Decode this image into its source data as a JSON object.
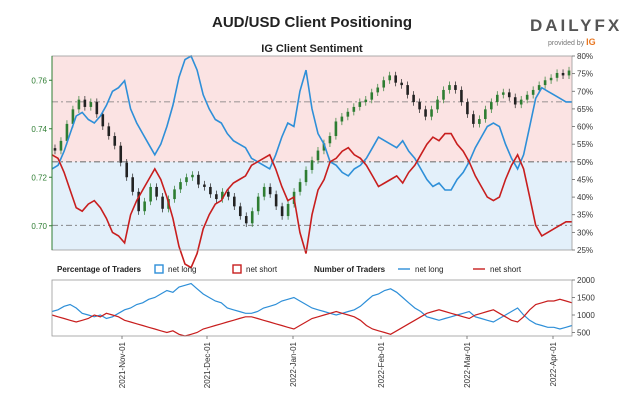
{
  "title": "AUD/USD Client Positioning",
  "logo": {
    "text": "DAILYFX",
    "provided_by": "provided by",
    "brand": "IG"
  },
  "chart_data": [
    {
      "type": "line",
      "title": "IG Client Sentiment",
      "left_axis": {
        "ticks": [
          "0.76",
          "0.74",
          "0.72",
          "0.70"
        ],
        "values": [
          0.76,
          0.74,
          0.72,
          0.7
        ],
        "range": [
          0.69,
          0.77
        ]
      },
      "right_axis": {
        "ticks": [
          "80%",
          "75%",
          "70%",
          "65%",
          "60%",
          "55%",
          "50%",
          "45%",
          "40%",
          "35%",
          "30%",
          "25%"
        ],
        "values": [
          80,
          75,
          70,
          65,
          60,
          55,
          50,
          45,
          40,
          35,
          30,
          25
        ],
        "range": [
          25,
          80
        ]
      },
      "reference_lines": [
        67,
        50,
        32
      ],
      "series": [
        {
          "name": "net long",
          "color": "#2e8fd8",
          "values": [
            48,
            49,
            53,
            58,
            63,
            64,
            62,
            61,
            63,
            66,
            70,
            71,
            73,
            65,
            61,
            58,
            55,
            52,
            55,
            60,
            66,
            74,
            79,
            80,
            76,
            69,
            65,
            62,
            61,
            58,
            56,
            55,
            54,
            51,
            50,
            49,
            48,
            52,
            57,
            61,
            60,
            70,
            76,
            65,
            58,
            55,
            50,
            49,
            47,
            46,
            48,
            49,
            51,
            54,
            57,
            56,
            55,
            54,
            56,
            53,
            51,
            48,
            45,
            43,
            44,
            42,
            42,
            45,
            47,
            50,
            54,
            57,
            60,
            61,
            60,
            55,
            51,
            48,
            52,
            60,
            68,
            71,
            70,
            69,
            68,
            67,
            67
          ]
        },
        {
          "name": "net short",
          "color": "#c81e1e",
          "values": [
            52,
            51,
            47,
            42,
            37,
            36,
            38,
            39,
            37,
            34,
            30,
            29,
            27,
            35,
            39,
            42,
            45,
            48,
            45,
            40,
            34,
            26,
            21,
            20,
            24,
            31,
            35,
            38,
            39,
            42,
            44,
            45,
            46,
            49,
            50,
            51,
            52,
            48,
            43,
            39,
            40,
            30,
            24,
            35,
            42,
            45,
            50,
            51,
            53,
            54,
            52,
            51,
            49,
            46,
            43,
            44,
            45,
            46,
            44,
            47,
            49,
            52,
            55,
            57,
            56,
            58,
            58,
            55,
            53,
            50,
            46,
            43,
            40,
            39,
            40,
            45,
            49,
            52,
            48,
            40,
            32,
            29,
            30,
            31,
            32,
            33,
            33
          ]
        }
      ],
      "price": {
        "start": 0.732,
        "values": [
          0.731,
          0.735,
          0.742,
          0.748,
          0.752,
          0.749,
          0.751,
          0.746,
          0.741,
          0.737,
          0.733,
          0.726,
          0.72,
          0.714,
          0.706,
          0.71,
          0.716,
          0.712,
          0.707,
          0.711,
          0.715,
          0.718,
          0.72,
          0.721,
          0.717,
          0.716,
          0.713,
          0.711,
          0.714,
          0.712,
          0.708,
          0.704,
          0.701,
          0.706,
          0.712,
          0.716,
          0.713,
          0.708,
          0.704,
          0.709,
          0.714,
          0.718,
          0.723,
          0.727,
          0.731,
          0.734,
          0.737,
          0.743,
          0.745,
          0.747,
          0.749,
          0.751,
          0.752,
          0.755,
          0.757,
          0.76,
          0.762,
          0.759,
          0.758,
          0.754,
          0.751,
          0.748,
          0.745,
          0.748,
          0.752,
          0.756,
          0.758,
          0.756,
          0.751,
          0.746,
          0.742,
          0.744,
          0.748,
          0.751,
          0.754,
          0.755,
          0.753,
          0.75,
          0.752,
          0.754,
          0.756,
          0.758,
          0.76,
          0.761,
          0.763,
          0.762,
          0.764
        ]
      }
    },
    {
      "type": "line",
      "legend": {
        "pct_label": "Percentage of Traders",
        "num_label": "Number of Traders",
        "net_long": "net long",
        "net_short": "net short"
      },
      "right_axis": {
        "ticks": [
          "2000",
          "1500",
          "1000",
          "500"
        ],
        "values": [
          2000,
          1500,
          1000,
          500
        ],
        "range": [
          400,
          2000
        ]
      },
      "x_ticks": [
        "2021-Nov-01",
        "2021-Dec-01",
        "2022-Jan-01",
        "2022-Feb-01",
        "2022-Mar-01",
        "2022-Apr-01"
      ],
      "series": [
        {
          "name": "net long",
          "color": "#2e8fd8",
          "values": [
            1100,
            1150,
            1250,
            1300,
            1200,
            1050,
            1000,
            950,
            1000,
            900,
            950,
            1050,
            1150,
            1200,
            1300,
            1350,
            1450,
            1500,
            1600,
            1700,
            1650,
            1800,
            1850,
            1900,
            1750,
            1600,
            1500,
            1400,
            1350,
            1200,
            1150,
            1100,
            1050,
            1050,
            1100,
            1200,
            1250,
            1300,
            1400,
            1450,
            1500,
            1400,
            1300,
            1200,
            1150,
            1100,
            1050,
            1000,
            1050,
            1100,
            1150,
            1250,
            1400,
            1550,
            1600,
            1700,
            1750,
            1650,
            1500,
            1350,
            1200,
            1100,
            950,
            900,
            850,
            900,
            950,
            1000,
            1050,
            1100,
            950,
            900,
            850,
            800,
            900,
            1000,
            1100,
            1200,
            1000,
            850,
            750,
            700,
            650,
            650,
            600,
            650,
            700
          ]
        },
        {
          "name": "net short",
          "color": "#c81e1e",
          "values": [
            1000,
            950,
            900,
            850,
            800,
            850,
            900,
            1000,
            950,
            1050,
            1000,
            950,
            850,
            800,
            750,
            700,
            650,
            600,
            550,
            500,
            550,
            450,
            400,
            450,
            500,
            600,
            650,
            700,
            750,
            800,
            850,
            900,
            950,
            950,
            900,
            850,
            800,
            750,
            700,
            650,
            600,
            700,
            800,
            900,
            950,
            1000,
            1050,
            1100,
            1050,
            1000,
            950,
            850,
            700,
            600,
            550,
            500,
            450,
            550,
            650,
            750,
            850,
            950,
            1050,
            1100,
            1150,
            1100,
            1050,
            1000,
            950,
            900,
            1000,
            1050,
            1100,
            1150,
            1050,
            950,
            850,
            800,
            950,
            1150,
            1300,
            1350,
            1400,
            1400,
            1450,
            1400,
            1350
          ]
        }
      ]
    }
  ]
}
